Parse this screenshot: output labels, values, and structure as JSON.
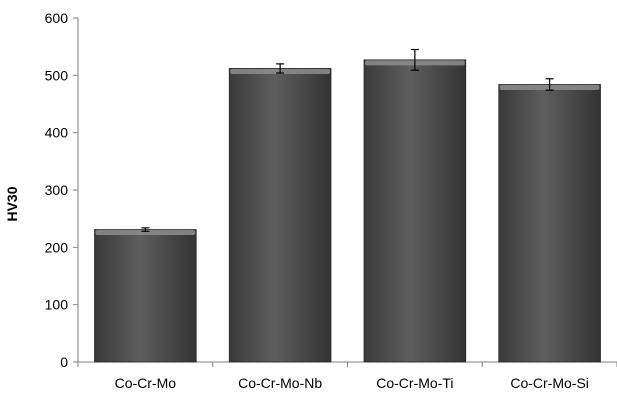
{
  "chart_data": {
    "type": "bar",
    "title": "",
    "xlabel": "",
    "ylabel": "HV30",
    "categories": [
      "Co-Cr-Mo",
      "Co-Cr-Mo-Nb",
      "Co-Cr-Mo-Ti",
      "Co-Cr-Mo-Si"
    ],
    "values": [
      231,
      512,
      527,
      484
    ],
    "error": [
      3,
      8,
      18,
      10
    ],
    "ylim": [
      0,
      600
    ],
    "yticks": [
      0,
      100,
      200,
      300,
      400,
      500,
      600
    ],
    "grid": false,
    "legend": "none",
    "bar_color": "#555555"
  }
}
